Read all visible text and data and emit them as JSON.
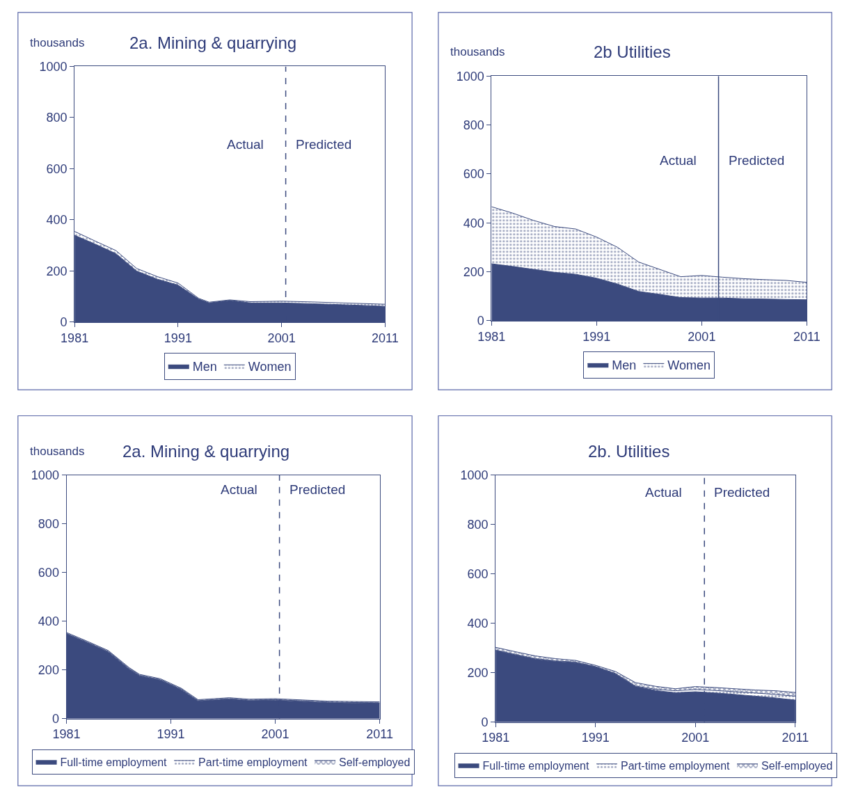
{
  "chart_data": [
    {
      "type": "area",
      "title": "2a. Mining & quarrying",
      "ylabel": "thousands",
      "stacked": true,
      "legend": "bottom",
      "x": [
        1981,
        1983,
        1985,
        1987,
        1989,
        1991,
        1993,
        1994,
        1996,
        1998,
        2001,
        2004,
        2007,
        2011
      ],
      "xlim": [
        1981,
        2011
      ],
      "xticks": [
        1981,
        1991,
        2001,
        2011
      ],
      "ylim": [
        0,
        1000
      ],
      "yticks": [
        0,
        200,
        400,
        600,
        800,
        1000
      ],
      "series": [
        {
          "name": "Men",
          "color": "#3b4a7e",
          "values": [
            340,
            305,
            268,
            200,
            168,
            145,
            90,
            75,
            85,
            75,
            75,
            72,
            68,
            62
          ]
        },
        {
          "name": "Women",
          "color": "#3b4a7e",
          "values": [
            15,
            12,
            12,
            10,
            10,
            8,
            3,
            3,
            2,
            5,
            7,
            7,
            7,
            8
          ]
        }
      ],
      "ref_lines": [
        {
          "axis": "x",
          "value": 2001.4,
          "line_style": "dashed"
        }
      ],
      "annotations": [
        "Actual",
        "Predicted"
      ]
    },
    {
      "type": "area",
      "title": "2b Utilities",
      "ylabel": "thousands",
      "stacked": true,
      "legend": "bottom",
      "x": [
        1981,
        1983,
        1985,
        1987,
        1989,
        1991,
        1993,
        1995,
        1997,
        1999,
        2001,
        2003,
        2005,
        2007,
        2009,
        2011
      ],
      "xlim": [
        1981,
        2011
      ],
      "xticks": [
        1981,
        1991,
        2001,
        2011
      ],
      "ylim": [
        0,
        1000
      ],
      "yticks": [
        0,
        200,
        400,
        600,
        800,
        1000
      ],
      "series": [
        {
          "name": "Men",
          "color": "#3b4a7e",
          "values": [
            233,
            222,
            210,
            198,
            190,
            174,
            150,
            120,
            108,
            95,
            93,
            93,
            90,
            89,
            87,
            86
          ]
        },
        {
          "name": "Women",
          "color": "#3b4a7e",
          "values": [
            233,
            218,
            200,
            187,
            185,
            168,
            150,
            120,
            102,
            85,
            92,
            85,
            82,
            79,
            78,
            71
          ]
        }
      ],
      "ref_lines": [
        {
          "axis": "x",
          "value": 2002.6,
          "line_style": "solid"
        }
      ],
      "annotations": [
        "Actual",
        "Predicted"
      ]
    },
    {
      "type": "area",
      "title": "2a. Mining & quarrying",
      "ylabel": "thousands",
      "stacked": true,
      "legend": "bottom",
      "x": [
        1981,
        1983,
        1985,
        1987,
        1988,
        1990,
        1992,
        1993.6,
        1996.6,
        1998.5,
        2001,
        2006,
        2011
      ],
      "xlim": [
        1981,
        2011
      ],
      "xticks": [
        1981,
        1991,
        2001,
        2011
      ],
      "ylim": [
        0,
        1000
      ],
      "yticks": [
        0,
        200,
        400,
        600,
        800,
        1000
      ],
      "series": [
        {
          "name": "Full-time employment",
          "color": "#3b4a7e",
          "values": [
            348,
            312,
            274,
            204,
            176,
            158,
            119,
            72,
            80,
            74,
            76,
            66,
            63
          ]
        },
        {
          "name": "Part-time employment",
          "color": "#3b4a7e",
          "values": [
            2,
            2,
            2,
            2,
            2,
            2,
            2,
            2,
            2,
            2,
            2,
            2,
            2
          ]
        },
        {
          "name": "Self-employed",
          "color": "#3b4a7e",
          "values": [
            4,
            4,
            4,
            4,
            4,
            4,
            4,
            4,
            4,
            4,
            4,
            4,
            4
          ]
        }
      ],
      "ref_lines": [
        {
          "axis": "x",
          "value": 2001.4,
          "line_style": "dashed"
        }
      ],
      "annotations": [
        "Actual",
        "Predicted"
      ]
    },
    {
      "type": "area",
      "title": "2b. Utilities",
      "stacked": true,
      "legend": "bottom",
      "x": [
        1981,
        1983,
        1985,
        1987,
        1989,
        1991,
        1993,
        1995,
        1997,
        1999,
        2001,
        2003,
        2005,
        2007,
        2009,
        2011
      ],
      "xlim": [
        1981,
        2011
      ],
      "xticks": [
        1981,
        1991,
        2001,
        2011
      ],
      "ylim": [
        0,
        1000
      ],
      "yticks": [
        0,
        200,
        400,
        600,
        800,
        1000
      ],
      "series": [
        {
          "name": "Full-time employment",
          "color": "#3b4a7e",
          "values": [
            290,
            272,
            255,
            246,
            241,
            224,
            196,
            144,
            128,
            119,
            123,
            118,
            112,
            105,
            98,
            89
          ]
        },
        {
          "name": "Part-time employment",
          "color": "#3b4a7e",
          "values": [
            2,
            2,
            2,
            2,
            2,
            1,
            1,
            2,
            5,
            8,
            9,
            10,
            11,
            13,
            14,
            16
          ]
        },
        {
          "name": "Self-employed",
          "color": "#3b4a7e",
          "values": [
            11,
            11,
            11,
            9,
            7,
            5,
            8,
            14,
            12,
            8,
            12,
            12,
            12,
            12,
            15,
            15
          ]
        }
      ],
      "ref_lines": [
        {
          "axis": "x",
          "value": 2001.9,
          "line_style": "dashed"
        }
      ],
      "annotations": [
        "Actual",
        "Predicted"
      ]
    }
  ]
}
